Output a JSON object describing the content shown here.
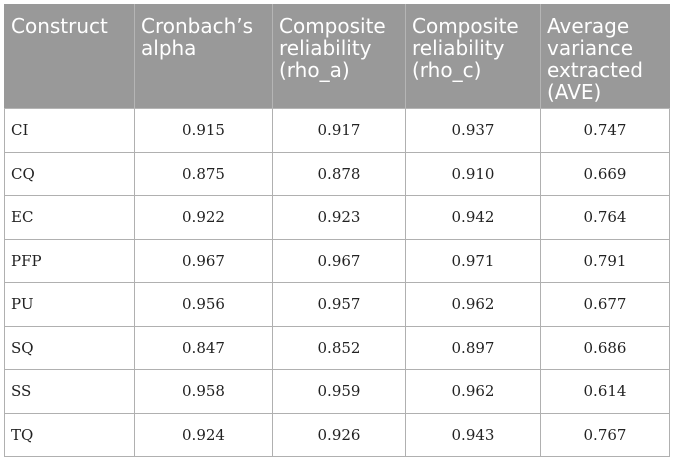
{
  "table": {
    "headers": [
      "Construct",
      "Cronbach’s alpha",
      "Composite reliability (rho_a)",
      "Composite reliability (rho_c)",
      "Average variance extracted (AVE)"
    ],
    "rows": [
      [
        "CI",
        "0.915",
        "0.917",
        "0.937",
        "0.747"
      ],
      [
        "CQ",
        "0.875",
        "0.878",
        "0.910",
        "0.669"
      ],
      [
        "EC",
        "0.922",
        "0.923",
        "0.942",
        "0.764"
      ],
      [
        "PFP",
        "0.967",
        "0.967",
        "0.971",
        "0.791"
      ],
      [
        "PU",
        "0.956",
        "0.957",
        "0.962",
        "0.677"
      ],
      [
        "SQ",
        "0.847",
        "0.852",
        "0.897",
        "0.686"
      ],
      [
        "SS",
        "0.958",
        "0.959",
        "0.962",
        "0.614"
      ],
      [
        "TQ",
        "0.924",
        "0.926",
        "0.943",
        "0.767"
      ]
    ],
    "header_bg": "#999999",
    "header_text_color": "#ffffff",
    "border_color": "#b0b0b0"
  }
}
